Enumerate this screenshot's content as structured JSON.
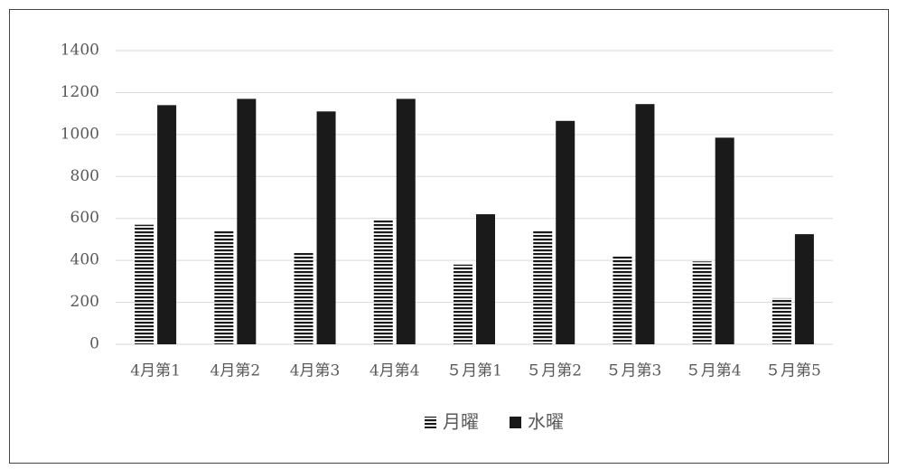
{
  "chart_data": {
    "type": "bar",
    "categories": [
      "4月第1",
      "4月第2",
      "4月第3",
      "4月第4",
      "５月第1",
      "５月第2",
      "５月第3",
      "５月第4",
      "５月第5"
    ],
    "series": [
      {
        "name": "月曜",
        "color": "#1a1a1a",
        "pattern": "stripes",
        "values": [
          570,
          540,
          435,
          590,
          380,
          540,
          420,
          395,
          220
        ]
      },
      {
        "name": "水曜",
        "color": "#1a1a1a",
        "values": [
          1140,
          1170,
          1110,
          1170,
          620,
          1065,
          1145,
          985,
          525
        ]
      }
    ],
    "ylim": [
      0,
      1400
    ],
    "yticks": [
      0,
      200,
      400,
      600,
      800,
      1000,
      1200,
      1400
    ],
    "grid": true,
    "legend": "bottom"
  }
}
